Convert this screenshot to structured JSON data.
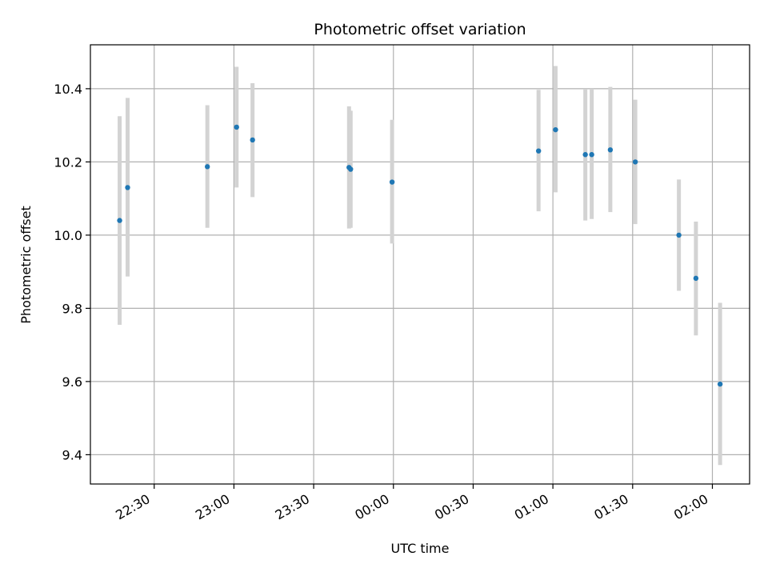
{
  "chart_data": {
    "type": "scatter",
    "title": "Photometric offset variation",
    "xlabel": "UTC time",
    "ylabel": "Photometric offset",
    "grid": true,
    "x_tick_labels": [
      "22:30",
      "23:00",
      "23:30",
      "00:00",
      "00:30",
      "01:00",
      "01:30",
      "02:00"
    ],
    "x_tick_minutes": [
      1350,
      1380,
      1410,
      1440,
      1470,
      1500,
      1530,
      1560
    ],
    "x_range_minutes": [
      1326,
      1574
    ],
    "y_ticks": [
      9.4,
      9.6,
      9.8,
      10.0,
      10.2,
      10.4
    ],
    "y_tick_labels": [
      "9.4",
      "9.6",
      "9.8",
      "10.0",
      "10.2",
      "10.4"
    ],
    "ylim": [
      9.32,
      10.52
    ],
    "marker_color": "#1f77b4",
    "errorbar_color": "#d3d3d3",
    "points": [
      {
        "time": "22:17",
        "minute": 1337.0,
        "y": 10.04,
        "lo": 9.755,
        "hi": 10.325
      },
      {
        "time": "22:20",
        "minute": 1340.0,
        "y": 10.13,
        "lo": 9.887,
        "hi": 10.375
      },
      {
        "time": "22:50",
        "minute": 1370.0,
        "y": 10.187,
        "lo": 10.02,
        "hi": 10.355
      },
      {
        "time": "23:01",
        "minute": 1381.0,
        "y": 10.295,
        "lo": 10.13,
        "hi": 10.46
      },
      {
        "time": "23:07",
        "minute": 1387.0,
        "y": 10.26,
        "lo": 10.104,
        "hi": 10.415
      },
      {
        "time": "23:43",
        "minute": 1423.3,
        "y": 10.185,
        "lo": 10.018,
        "hi": 10.352
      },
      {
        "time": "23:44",
        "minute": 1423.9,
        "y": 10.18,
        "lo": 10.02,
        "hi": 10.34
      },
      {
        "time": "23:59",
        "minute": 1439.5,
        "y": 10.145,
        "lo": 9.977,
        "hi": 10.315
      },
      {
        "time": "00:54",
        "minute": 1494.6,
        "y": 10.23,
        "lo": 10.065,
        "hi": 10.397
      },
      {
        "time": "01:01",
        "minute": 1501.0,
        "y": 10.288,
        "lo": 10.117,
        "hi": 10.462
      },
      {
        "time": "01:12",
        "minute": 1512.2,
        "y": 10.22,
        "lo": 10.04,
        "hi": 10.398
      },
      {
        "time": "01:15",
        "minute": 1514.6,
        "y": 10.22,
        "lo": 10.044,
        "hi": 10.4
      },
      {
        "time": "01:21",
        "minute": 1521.6,
        "y": 10.233,
        "lo": 10.063,
        "hi": 10.405
      },
      {
        "time": "01:31",
        "minute": 1531.0,
        "y": 10.2,
        "lo": 10.03,
        "hi": 10.37
      },
      {
        "time": "01:47",
        "minute": 1547.4,
        "y": 10.0,
        "lo": 9.848,
        "hi": 10.152
      },
      {
        "time": "01:54",
        "minute": 1553.8,
        "y": 9.882,
        "lo": 9.726,
        "hi": 10.037
      },
      {
        "time": "02:03",
        "minute": 1562.9,
        "y": 9.593,
        "lo": 9.372,
        "hi": 9.815
      }
    ]
  }
}
